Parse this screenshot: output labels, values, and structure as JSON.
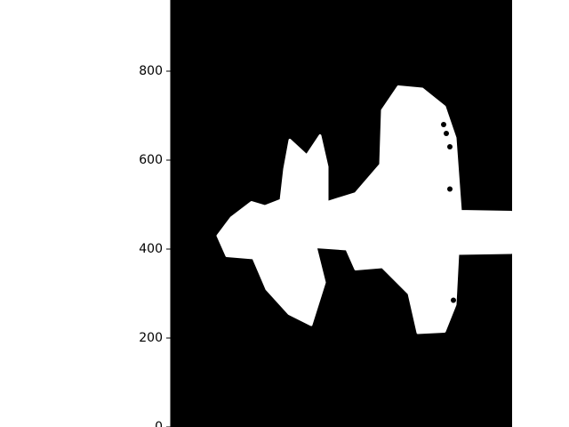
{
  "chart_data": {
    "type": "heatmap",
    "title": "",
    "xlabel": "",
    "ylabel": "",
    "ylim": [
      0,
      960
    ],
    "x_axis_visible": false,
    "grid": false,
    "legend": "none",
    "yticks": [
      0,
      200,
      400,
      600,
      800
    ],
    "ytick_labels": [
      "0",
      "200",
      "400",
      "600",
      "800"
    ],
    "colormap": {
      "0": "#000000",
      "1": "#ffffff"
    },
    "shape": "white airplane silhouette mask on black background",
    "mask_outline": [
      [
        245,
        430
      ],
      [
        260,
        470
      ],
      [
        283,
        505
      ],
      [
        298,
        496
      ],
      [
        316,
        510
      ],
      [
        320,
        580
      ],
      [
        326,
        645
      ],
      [
        345,
        610
      ],
      [
        360,
        655
      ],
      [
        368,
        585
      ],
      [
        368,
        505
      ],
      [
        400,
        525
      ],
      [
        428,
        590
      ],
      [
        430,
        712
      ],
      [
        448,
        765
      ],
      [
        475,
        760
      ],
      [
        500,
        720
      ],
      [
        512,
        650
      ],
      [
        518,
        485
      ],
      [
        575,
        483
      ],
      [
        575,
        392
      ],
      [
        515,
        390
      ],
      [
        512,
        275
      ],
      [
        500,
        215
      ],
      [
        470,
        212
      ],
      [
        460,
        300
      ],
      [
        430,
        360
      ],
      [
        400,
        355
      ],
      [
        390,
        400
      ],
      [
        355,
        405
      ],
      [
        365,
        325
      ],
      [
        350,
        230
      ],
      [
        325,
        255
      ],
      [
        300,
        310
      ],
      [
        285,
        380
      ],
      [
        255,
        385
      ],
      [
        245,
        430
      ]
    ],
    "mask_holes": [
      [
        499,
        680
      ],
      [
        502,
        660
      ],
      [
        506,
        630
      ],
      [
        506,
        535
      ],
      [
        510,
        285
      ]
    ]
  }
}
